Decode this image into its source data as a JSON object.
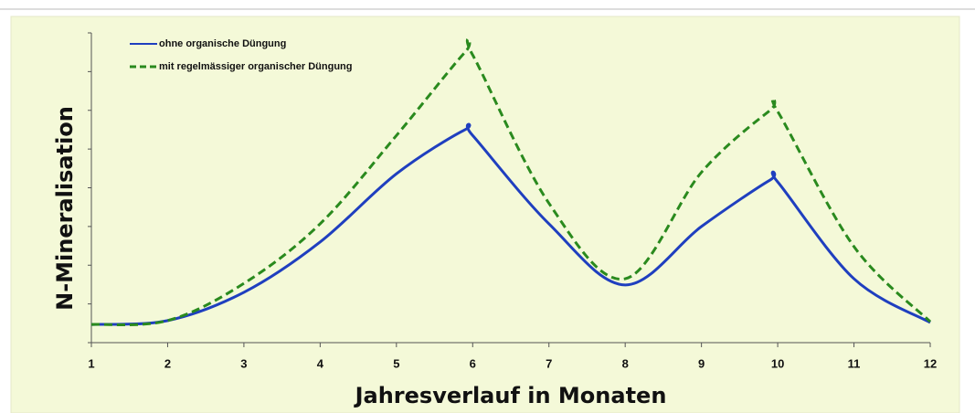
{
  "chart_data": {
    "type": "line",
    "x_label": "Jahresverlauf in Monaten",
    "y_label": "N-Mineralisation",
    "x": [
      1,
      2,
      3,
      4,
      5,
      5.9,
      6,
      7,
      8,
      9,
      9.9,
      10,
      11,
      12
    ],
    "series": [
      {
        "name": "ohne organische Düngung",
        "color": "#1f3fbf",
        "dash": false,
        "values": [
          0.47,
          0.57,
          1.3,
          2.6,
          4.36,
          5.5,
          5.35,
          3.07,
          1.49,
          3.0,
          4.2,
          4.15,
          1.65,
          0.52
        ]
      },
      {
        "name": "mit regelmässiger organischer Düngung",
        "color": "#2a8a1e",
        "dash": true,
        "values": [
          0.47,
          0.57,
          1.53,
          3.07,
          5.35,
          7.5,
          7.43,
          3.6,
          1.65,
          4.4,
          6.0,
          5.97,
          2.48,
          0.54
        ]
      }
    ],
    "xlim": [
      1,
      12
    ],
    "xticks": [
      1,
      2,
      3,
      4,
      5,
      6,
      7,
      8,
      9,
      10,
      11,
      12
    ],
    "ylim": [
      0,
      8
    ],
    "yticks": [
      0,
      1,
      2,
      3,
      4,
      5,
      6,
      7,
      8
    ],
    "legend": "top-left"
  }
}
